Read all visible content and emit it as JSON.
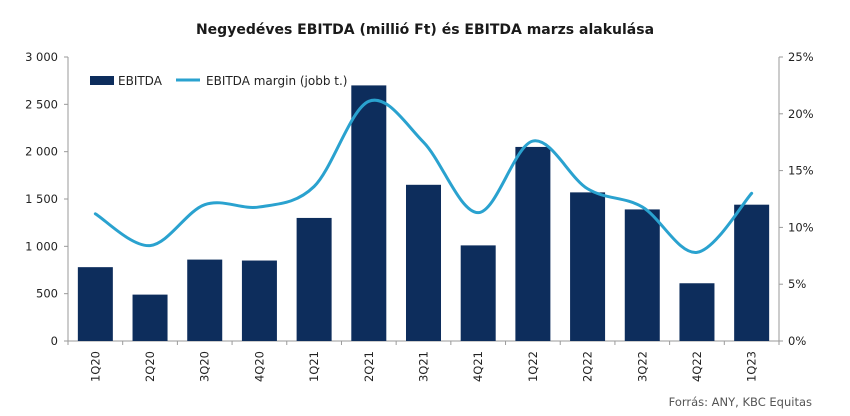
{
  "chart_data": {
    "type": "bar",
    "title": "Negyedéves EBITDA (millió Ft) és EBITDA marzs alakulása",
    "categories": [
      "1Q20",
      "2Q20",
      "3Q20",
      "4Q20",
      "1Q21",
      "2Q21",
      "3Q21",
      "4Q21",
      "1Q22",
      "2Q22",
      "3Q22",
      "4Q22",
      "1Q23"
    ],
    "series": [
      {
        "name": "EBITDA",
        "type": "bar",
        "axis": "left",
        "color": "#0d2d5c",
        "values": [
          780,
          490,
          860,
          850,
          1300,
          2700,
          1650,
          1010,
          2050,
          1570,
          1390,
          610,
          1440
        ]
      },
      {
        "name": "EBITDA margin (jobb t.)",
        "type": "line",
        "axis": "right",
        "color": "#2aa2cf",
        "values": [
          11.2,
          8.4,
          12.0,
          11.8,
          13.6,
          21.1,
          17.5,
          11.3,
          17.6,
          13.4,
          11.8,
          7.8,
          13.0
        ]
      }
    ],
    "y_left": {
      "min": 0,
      "max": 3000,
      "ticks": [
        "0",
        "500",
        "1 000",
        "1 500",
        "2 000",
        "2 500",
        "3 000"
      ],
      "tick_values": [
        0,
        500,
        1000,
        1500,
        2000,
        2500,
        3000
      ]
    },
    "y_right": {
      "min": 0,
      "max": 25,
      "ticks": [
        "0%",
        "5%",
        "10%",
        "15%",
        "20%",
        "25%"
      ],
      "tick_values": [
        0,
        5,
        10,
        15,
        20,
        25
      ]
    },
    "grid": false,
    "legend": "top-left",
    "source": "Forrás: ANY, KBC Equitas"
  }
}
